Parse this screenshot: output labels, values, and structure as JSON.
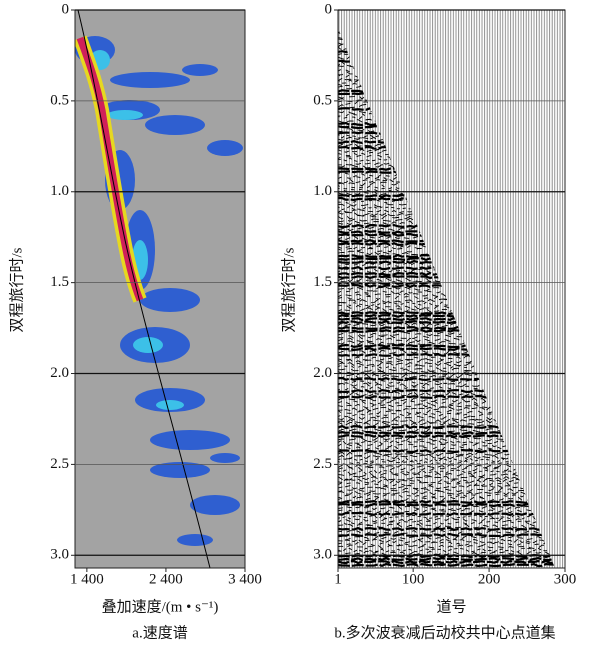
{
  "chart_data": [
    {
      "type": "velocity-spectrum",
      "xlim": [
        1250,
        3400
      ],
      "xticks": [
        {
          "value": 1400,
          "label": "1 400"
        },
        {
          "value": 2400,
          "label": "2 400"
        },
        {
          "value": 3400,
          "label": "3 400"
        }
      ],
      "ylim": [
        0,
        3.07
      ],
      "yticks": [
        0,
        0.5,
        {
          "value": 1,
          "label": "1.0"
        },
        1.5,
        {
          "value": 2,
          "label": "2.0"
        },
        2.5,
        {
          "value": 3,
          "label": "3.0"
        }
      ],
      "x_label": "叠加速度/(m • s⁻¹)",
      "y_label": "双程旅行时/s",
      "caption": "a.速度谱",
      "grid": true
    },
    {
      "type": "gather",
      "xlim": [
        1,
        300
      ],
      "xticks": [
        1,
        100,
        200,
        300
      ],
      "ylim": [
        0,
        3.07
      ],
      "yticks": [
        0,
        0.5,
        {
          "value": 1,
          "label": "1.0"
        },
        1.5,
        {
          "value": 2,
          "label": "2.0"
        },
        2.5,
        {
          "value": 3,
          "label": "3.0"
        }
      ],
      "x_label": "道号",
      "y_label": "双程旅行时/s",
      "caption": "b.多次波衰减后动校共中心点道集",
      "grid": true
    }
  ]
}
